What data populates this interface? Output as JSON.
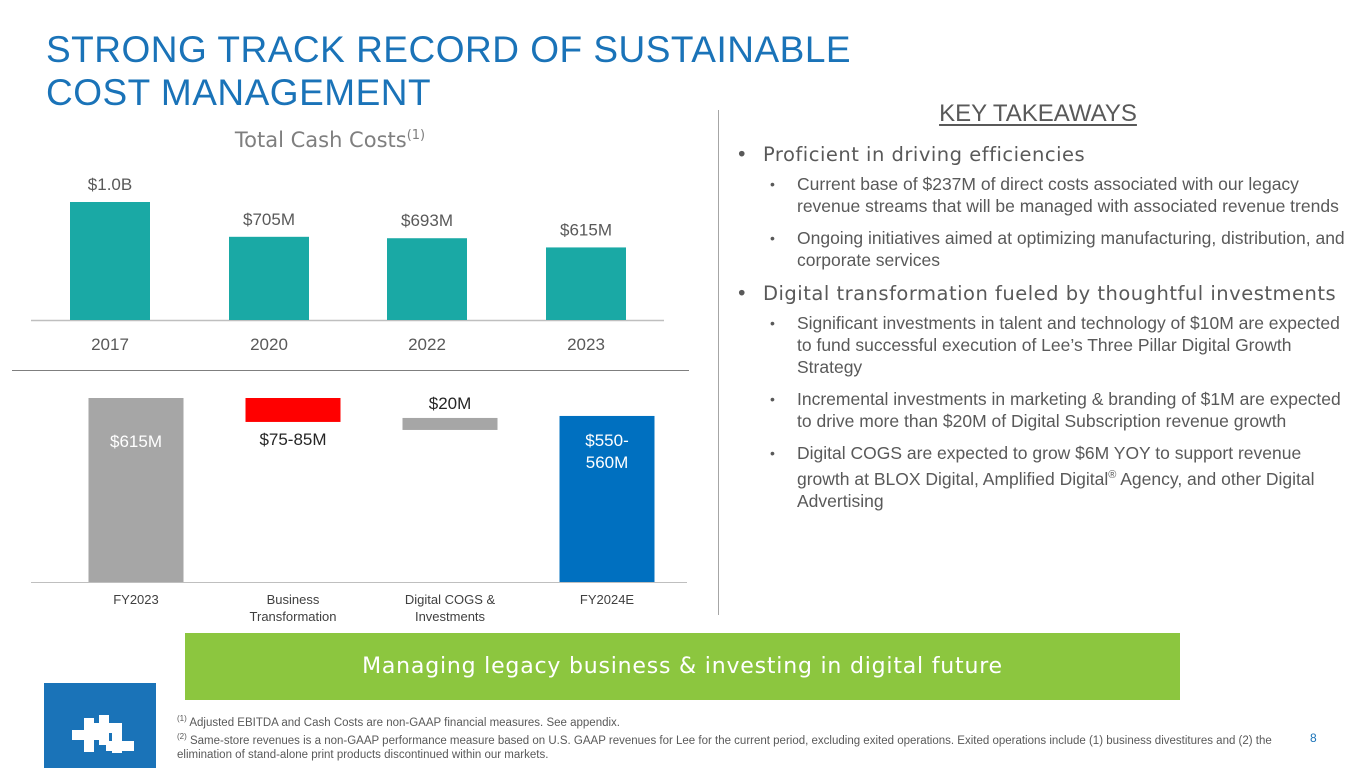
{
  "title": {
    "line1": "STRONG TRACK RECORD OF SUSTAINABLE",
    "line2": "COST MANAGEMENT"
  },
  "chart_data": [
    {
      "type": "bar",
      "title": "Total Cash Costs",
      "title_sup": "(1)",
      "categories": [
        "2017",
        "2020",
        "2022",
        "2023"
      ],
      "values": [
        1000,
        705,
        693,
        615
      ],
      "value_labels": [
        "$1.0B",
        "$705M",
        "$693M",
        "$615M"
      ],
      "units": "$M",
      "color": "#1aa9a5",
      "ylim": [
        0,
        1050
      ]
    },
    {
      "type": "waterfall",
      "categories": [
        "FY2023",
        "Business Transformation",
        "Digital COGS & Investments",
        "FY2024E"
      ],
      "category_lines": [
        [
          "FY2023"
        ],
        [
          "Business",
          "Transformation"
        ],
        [
          "Digital COGS &",
          "Investments"
        ],
        [
          "FY2024E"
        ]
      ],
      "values": [
        615,
        -80,
        20,
        555
      ],
      "ranges": [
        null,
        [
          75,
          85
        ],
        [
          20,
          20
        ],
        [
          550,
          560
        ]
      ],
      "value_labels": [
        "$615M",
        "$75-85M",
        "$20M",
        "$550-\n560M"
      ],
      "colors": [
        "#a6a6a6",
        "#ff0000",
        "#a6a6a6",
        "#0070c0"
      ],
      "ylim": [
        0,
        615
      ]
    }
  ],
  "takeaways": {
    "heading": "KEY TAKEAWAYS",
    "sections": [
      {
        "text": "Proficient in driving efficiencies",
        "items": [
          "Current base of $237M of direct costs associated with our legacy revenue streams that will be managed with associated revenue trends",
          "Ongoing initiatives aimed at optimizing manufacturing, distribution, and corporate services"
        ]
      },
      {
        "text": "Digital transformation fueled by thoughtful investments",
        "items": [
          "Significant investments in talent and technology of $10M are expected to fund successful execution of Lee’s Three Pillar Digital Growth Strategy",
          "Incremental investments in marketing & branding of $1M are expected to drive more than $20M of Digital Subscription revenue growth"
        ]
      }
    ],
    "last_item": {
      "before": "Digital COGS are expected to grow $6M YOY to support revenue growth at BLOX Digital, Amplified Digital",
      "sup": "®",
      "after": " Agency, and other Digital Advertising"
    }
  },
  "banner": "Managing legacy business & investing in digital future",
  "footnotes": [
    {
      "num": "(1)",
      "text": "Adjusted EBITDA and Cash Costs are non-GAAP financial measures. See appendix."
    },
    {
      "num": "(2)",
      "text": "Same-store revenues is a non-GAAP performance measure based on U.S. GAAP revenues for Lee for the current period, excluding exited operations. Exited operations include (1) business divestitures and (2) the elimination of stand-alone print products discontinued within our markets."
    }
  ],
  "page_number": "8",
  "colors": {
    "title_blue": "#1a73b8",
    "banner_green": "#8cc63f",
    "teal": "#1aa9a5"
  }
}
